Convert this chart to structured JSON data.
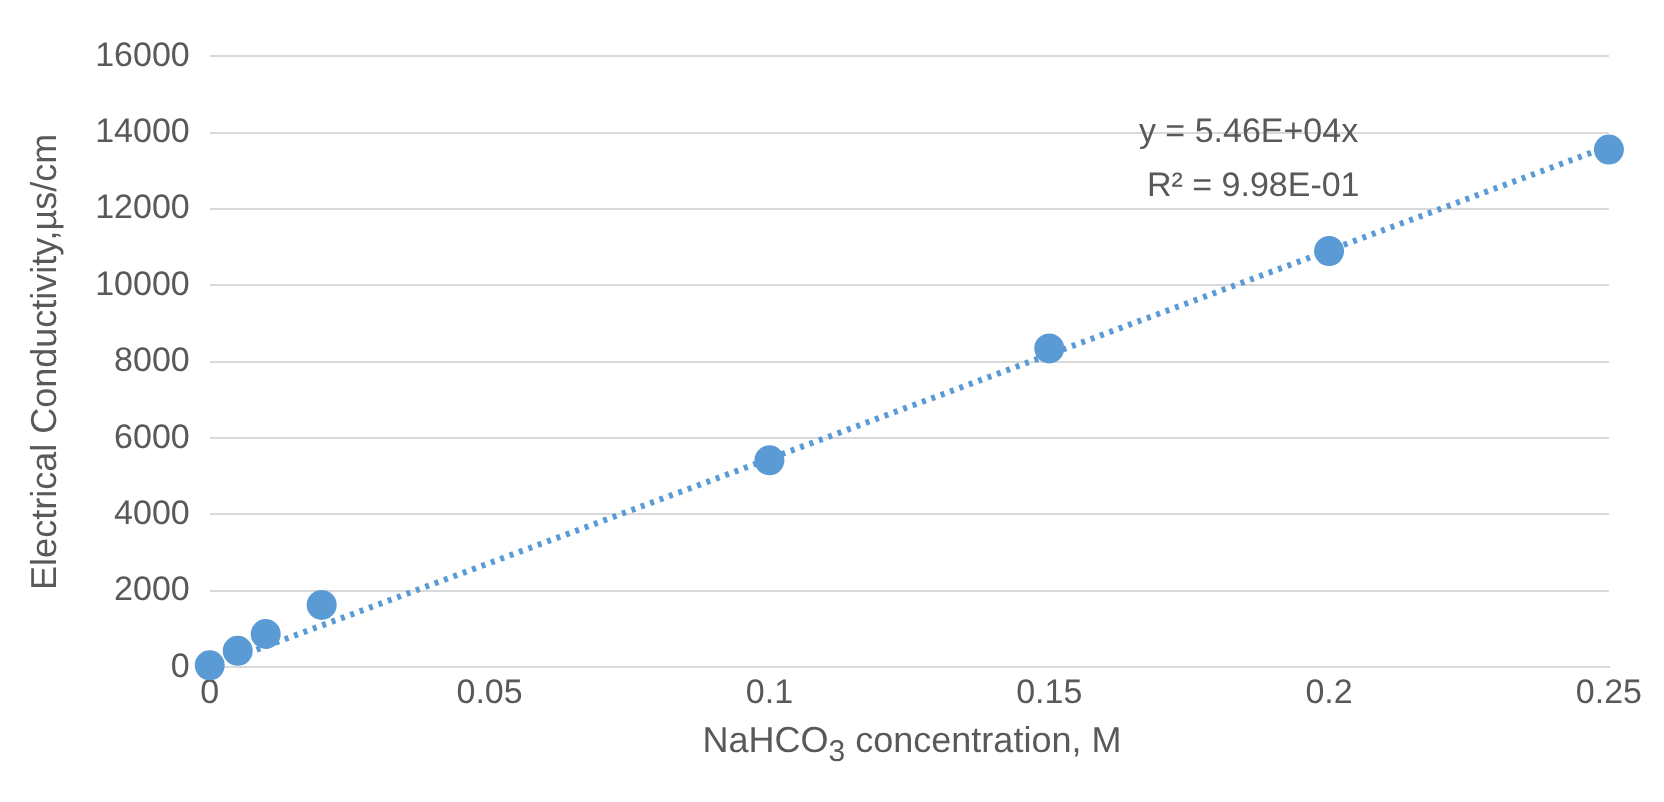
{
  "chart_data": {
    "type": "scatter",
    "xlabel": "NaHCO$_{3}$ concentration, M",
    "ylabel": "Electrical Conductivity,µs/cm",
    "xlim": [
      0,
      0.25
    ],
    "xticks": [
      0,
      0.05,
      0.1,
      0.15,
      0.2,
      0.25
    ],
    "ylim": [
      0,
      16000
    ],
    "yticks": [
      0,
      2000,
      4000,
      6000,
      8000,
      10000,
      12000,
      14000,
      16000
    ],
    "grid": "y",
    "legend": false,
    "marker": "circle",
    "annotations": [
      "y = 5.46E+04x",
      "R² = 9.98E-01"
    ],
    "series": [
      {
        "type": "scatter",
        "color": "#5b9bd5",
        "x": [
          0,
          0.005,
          0.01,
          0.02,
          0.1,
          0.15,
          0.2,
          0.25
        ],
        "values": [
          50,
          430,
          870,
          1630,
          5420,
          8350,
          10900,
          13560
        ]
      },
      {
        "type": "line",
        "color": "#5b9bd5",
        "line_style": "dotted",
        "marker": "none",
        "x": [
          0,
          0.25
        ],
        "values": [
          0,
          13650
        ]
      }
    ]
  }
}
